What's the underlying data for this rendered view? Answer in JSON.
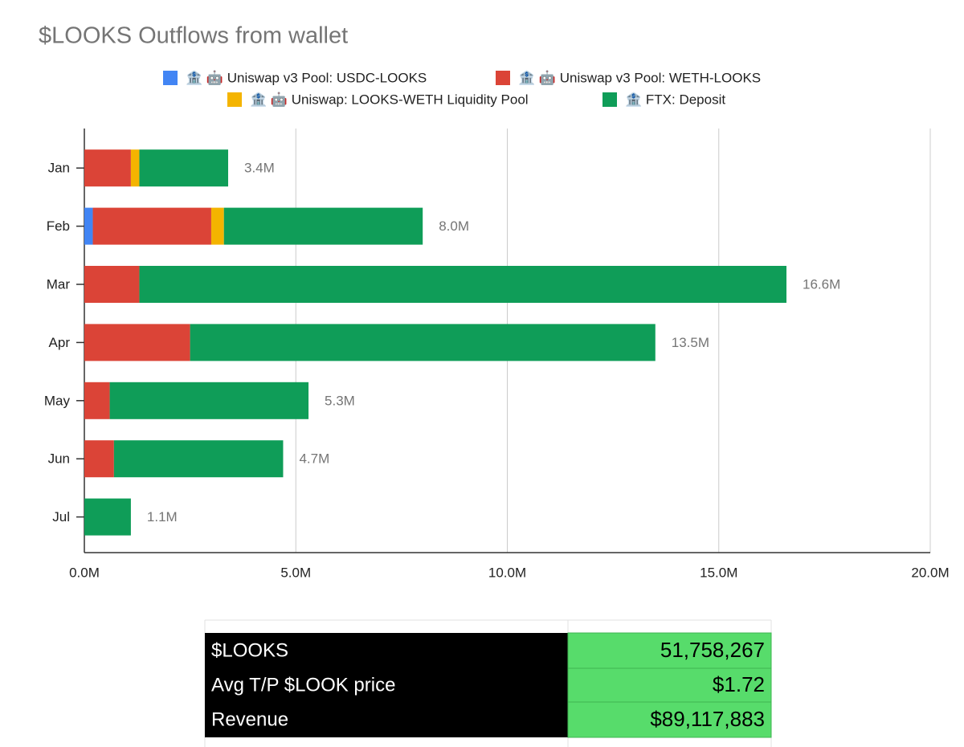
{
  "chart_data": {
    "type": "hbar_stacked",
    "title": "$LOOKS Outflows from wallet",
    "legend": "top",
    "grid": true,
    "categories": [
      "Jan",
      "Feb",
      "Mar",
      "Apr",
      "May",
      "Jun",
      "Jul"
    ],
    "series": [
      {
        "name": "🏦 🤖 Uniswap v3 Pool: USDC-LOOKS",
        "color": "#4285f4",
        "values": [
          null,
          0.2,
          null,
          null,
          null,
          null,
          null
        ]
      },
      {
        "name": "🏦 🤖 Uniswap v3 Pool: WETH-LOOKS",
        "color": "#db4437",
        "values": [
          1.1,
          2.8,
          1.3,
          2.5,
          0.6,
          0.7,
          null
        ]
      },
      {
        "name": "🏦 🤖 Uniswap: LOOKS-WETH Liquidity Pool",
        "color": "#f4b400",
        "values": [
          0.2,
          0.3,
          null,
          null,
          null,
          null,
          null
        ]
      },
      {
        "name": "🏦 FTX: Deposit",
        "color": "#0f9d58",
        "values": [
          2.1,
          4.7,
          15.3,
          11.0,
          4.7,
          4.0,
          1.1
        ]
      }
    ],
    "totals": {
      "values": [
        3.4,
        8.0,
        16.6,
        13.5,
        5.3,
        4.7,
        1.1
      ],
      "value_labels": [
        "3.4M",
        "8.0M",
        "16.6M",
        "13.5M",
        "5.3M",
        "4.7M",
        "1.1M"
      ]
    },
    "xlim": [
      0,
      20
    ],
    "xticks": [
      {
        "value": 0,
        "label": "0.0M"
      },
      {
        "value": 5,
        "label": "5.0M"
      },
      {
        "value": 10,
        "label": "10.0M"
      },
      {
        "value": 15,
        "label": "15.0M"
      },
      {
        "value": 20,
        "label": "20.0M"
      }
    ]
  },
  "table": {
    "rows": [
      [
        "$LOOKS",
        "51,758,267"
      ],
      [
        "Avg T/P $LOOK price",
        "$1.72"
      ],
      [
        "Revenue",
        "$89,117,883"
      ]
    ]
  }
}
